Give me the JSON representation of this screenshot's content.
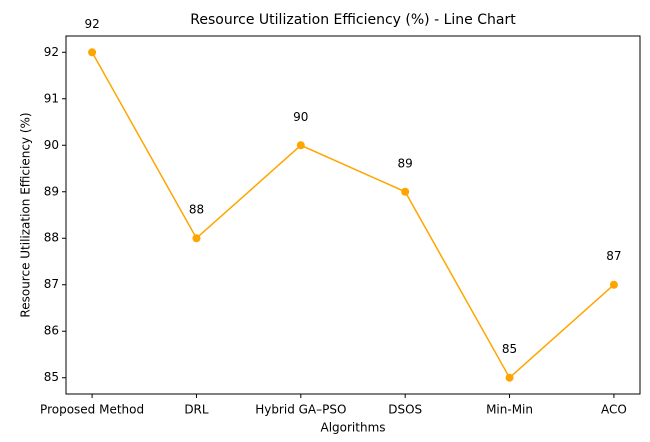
{
  "chart_data": {
    "type": "line",
    "title": "Resource Utilization Efficiency (%) - Line Chart",
    "x_label": "Algorithms",
    "y_label": "Resource Utilization Efficiency (%)",
    "categories": [
      "Proposed Method",
      "DRL",
      "Hybrid GA–PSO",
      "DSOS",
      "Min-Min",
      "ACO"
    ],
    "values": [
      92,
      88,
      90,
      89,
      85,
      87
    ],
    "color": "#ffa500",
    "ylim": [
      84.65,
      92.35
    ],
    "yticks": [
      85,
      86,
      87,
      88,
      89,
      90,
      91,
      92
    ],
    "grid": false
  }
}
